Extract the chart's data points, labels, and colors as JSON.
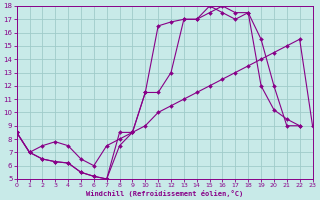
{
  "xlabel": "Windchill (Refroidissement éolien,°C)",
  "bg_color": "#c8eae8",
  "grid_color": "#a0ccca",
  "line_color": "#880088",
  "xmin": 0,
  "xmax": 23,
  "ymin": 5,
  "ymax": 18,
  "xticks": [
    0,
    1,
    2,
    3,
    4,
    5,
    6,
    7,
    8,
    9,
    10,
    11,
    12,
    13,
    14,
    15,
    16,
    17,
    18,
    19,
    20,
    21,
    22,
    23
  ],
  "yticks": [
    5,
    6,
    7,
    8,
    9,
    10,
    11,
    12,
    13,
    14,
    15,
    16,
    17,
    18
  ],
  "line1_x": [
    0,
    1,
    2,
    3,
    4,
    5,
    6,
    7,
    8,
    9,
    10,
    11,
    12,
    13,
    14,
    15,
    16,
    17,
    18,
    19,
    20,
    21,
    22,
    23
  ],
  "line1_y": [
    8.5,
    7.0,
    7.5,
    7.8,
    7.5,
    6.5,
    6.0,
    7.5,
    8.0,
    8.5,
    9.0,
    10.0,
    10.5,
    11.0,
    11.5,
    12.0,
    12.5,
    13.0,
    13.5,
    14.0,
    14.5,
    15.0,
    15.5,
    9.0
  ],
  "line2_x": [
    0,
    1,
    2,
    3,
    4,
    5,
    6,
    7,
    8,
    9,
    10,
    11,
    12,
    13,
    14,
    15,
    16,
    17,
    18,
    19,
    20,
    21,
    22
  ],
  "line2_y": [
    8.5,
    7.0,
    6.5,
    6.3,
    6.2,
    5.5,
    5.2,
    5.0,
    7.5,
    8.5,
    11.5,
    16.5,
    16.8,
    17.0,
    17.0,
    18.0,
    17.5,
    17.0,
    17.5,
    12.0,
    10.2,
    9.5,
    9.0
  ],
  "line3_x": [
    0,
    1,
    2,
    3,
    4,
    5,
    6,
    7,
    8,
    9,
    10,
    11,
    12,
    13,
    14,
    15,
    16,
    17,
    18,
    19,
    20,
    21,
    22
  ],
  "line3_y": [
    8.5,
    7.0,
    6.5,
    6.3,
    6.2,
    5.5,
    5.2,
    5.0,
    8.5,
    8.5,
    11.5,
    11.5,
    13.0,
    17.0,
    17.0,
    17.5,
    18.0,
    17.5,
    17.5,
    15.5,
    12.0,
    9.0,
    9.0
  ]
}
